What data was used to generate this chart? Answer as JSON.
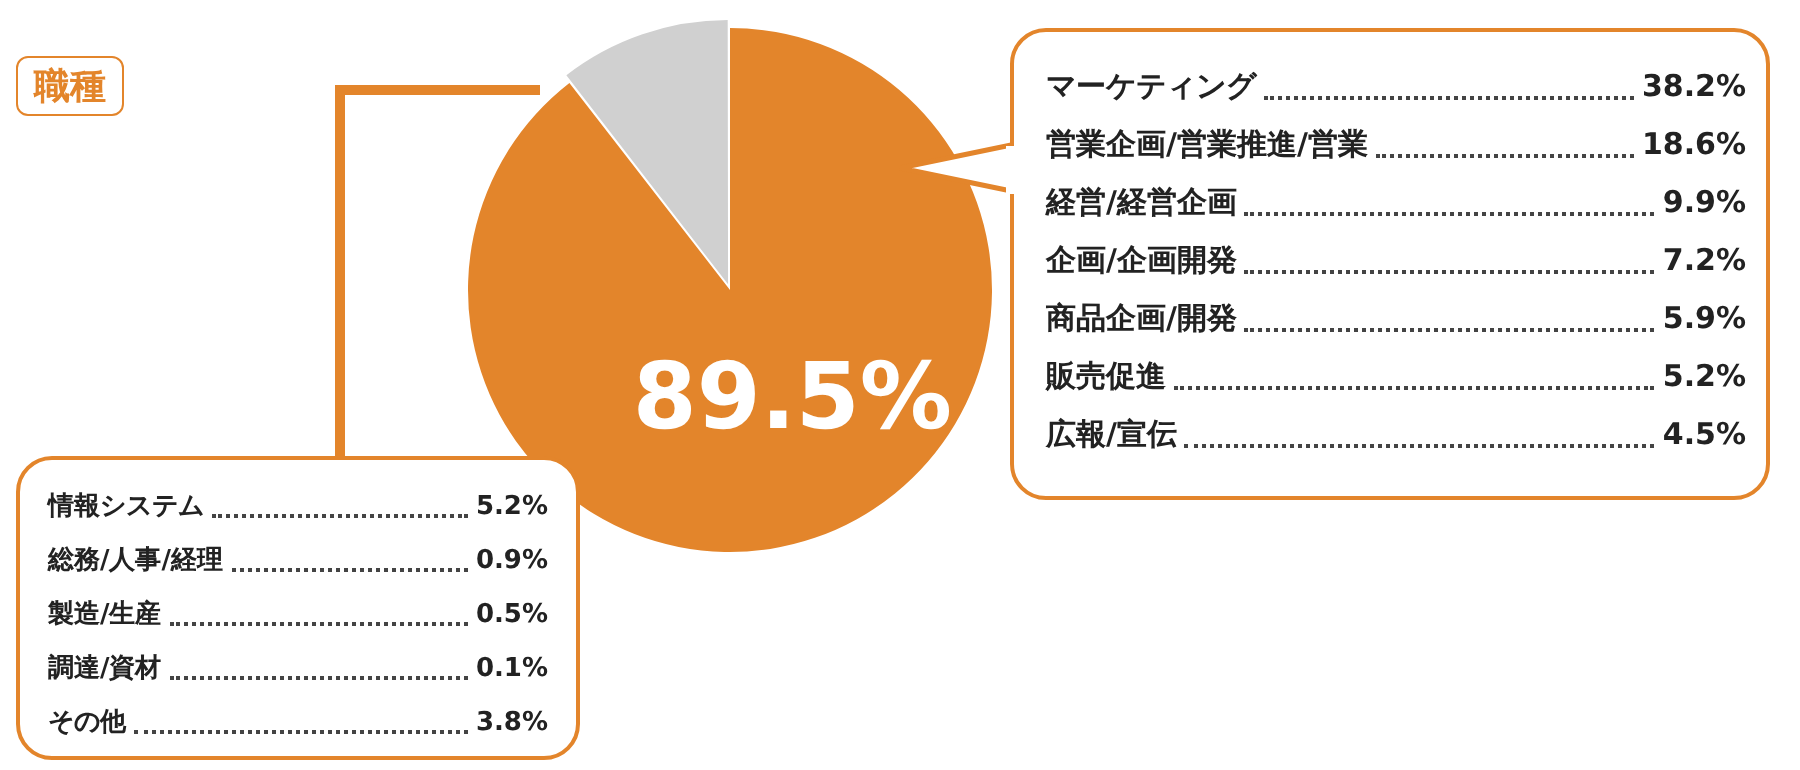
{
  "chart_data": {
    "type": "pie",
    "title": "職種",
    "categories": [
      null,
      null
    ],
    "values": [
      89.5,
      10.5
    ],
    "value_labels": [
      "89.5%",
      null
    ],
    "colors": [
      "#e3852b",
      "#d0d0d0"
    ],
    "annotations": [
      "マーケティング\t38.2%\n営業企画/営業推進/営業\t18.6%\n経営/経営企画\t9.9%\n企画/企画開発\t7.2%\n商品企画/開発\t5.9%\n販売促進\t5.2%\n広報/宣伝\t4.5%",
      "情報システム\t5.2%\n総務/人事/経理\t0.9%\n製造/生産\t0.5%\n調達/資材\t0.1%\nその他\t3.8%"
    ]
  }
}
